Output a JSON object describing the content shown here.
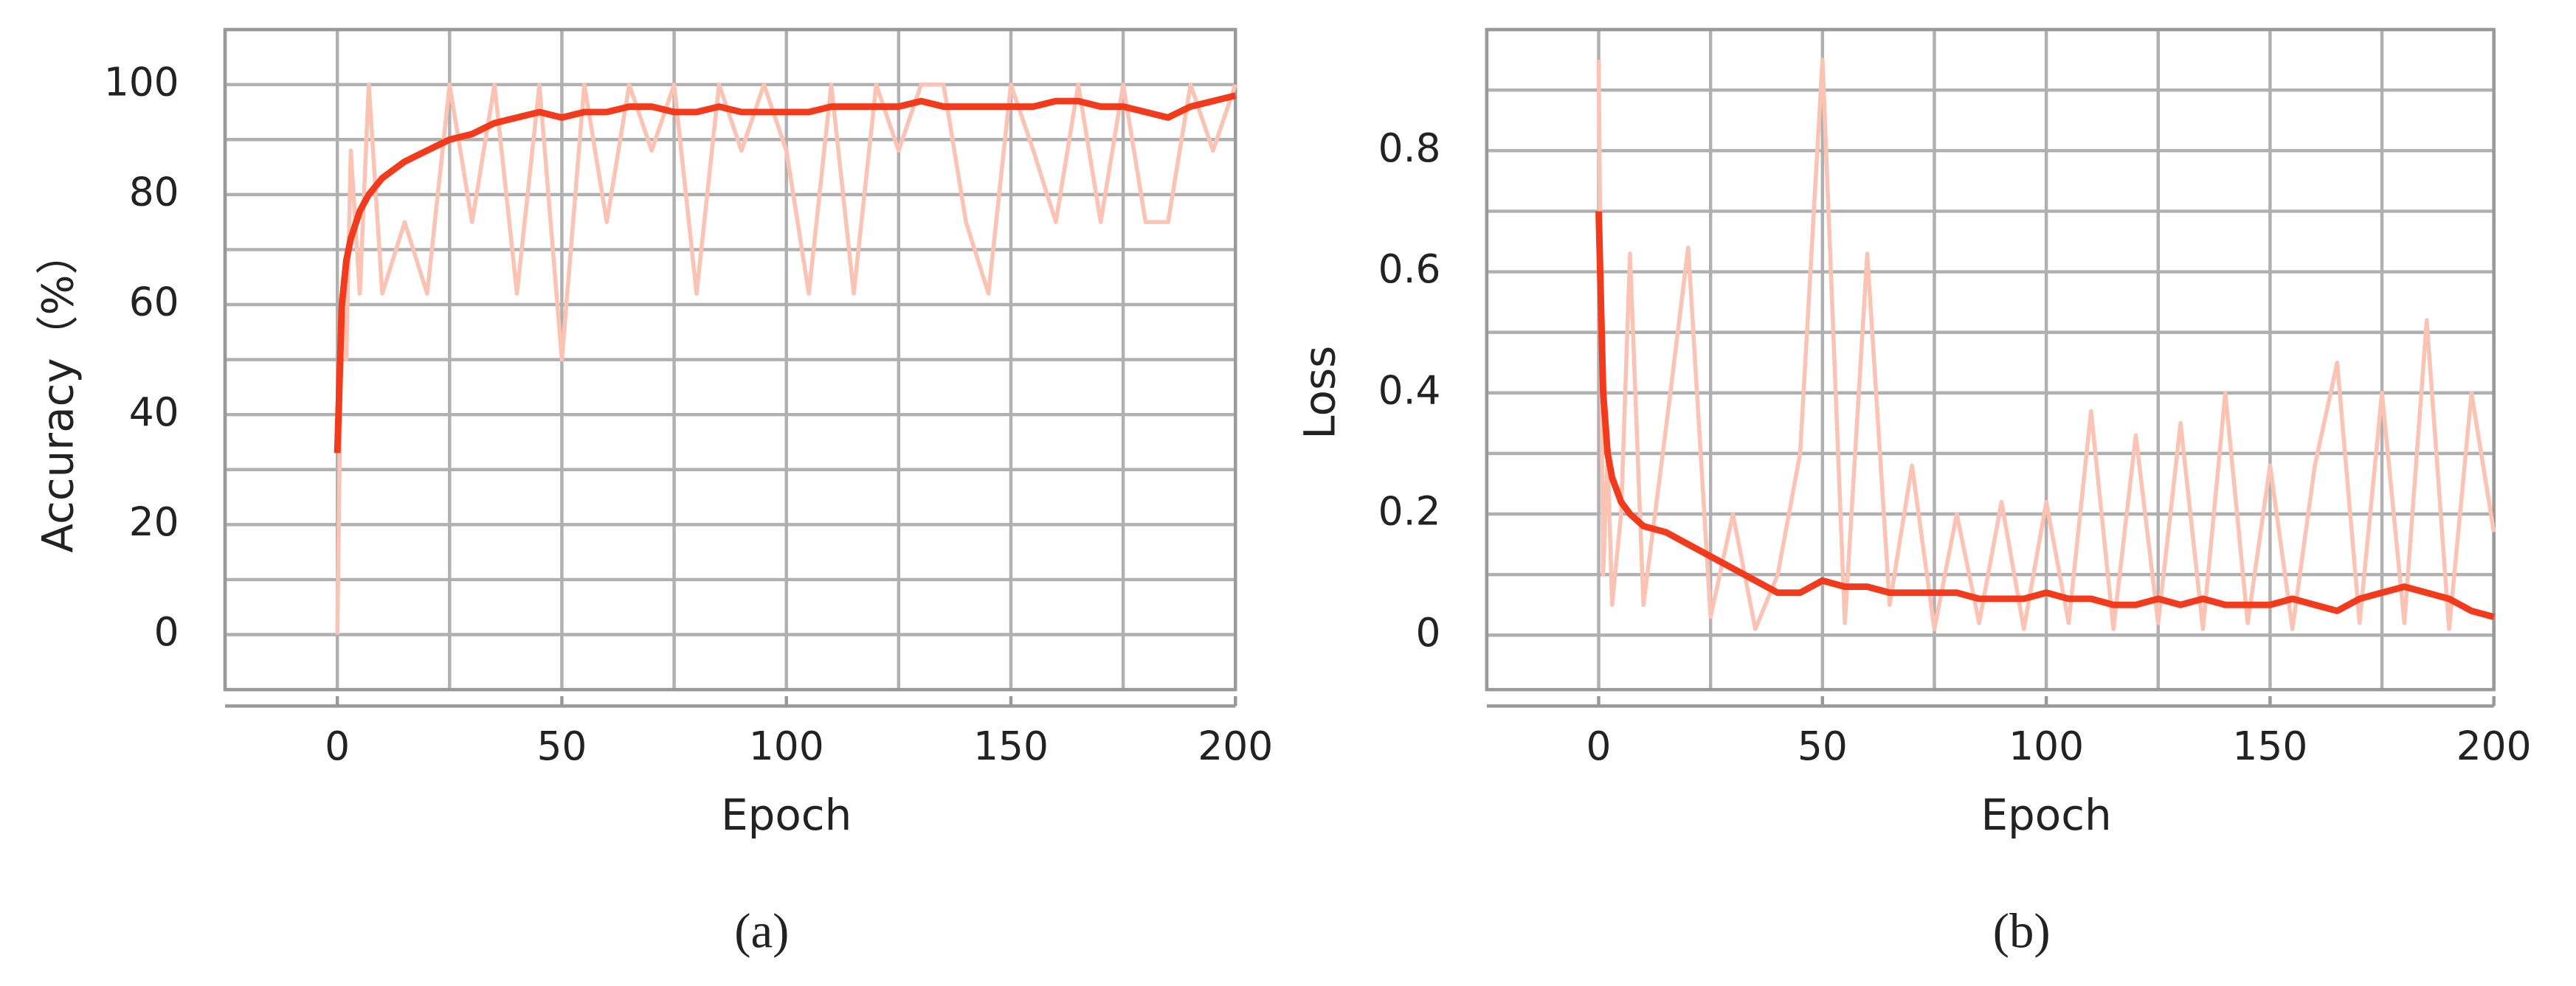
{
  "chart_data": [
    {
      "type": "line",
      "caption": "(a)",
      "x_label": "Epoch",
      "y_label": "Accuracy（%）",
      "x": [
        0,
        1,
        2,
        3,
        5,
        7,
        10,
        15,
        20,
        25,
        30,
        35,
        40,
        45,
        50,
        55,
        60,
        65,
        70,
        75,
        80,
        85,
        90,
        95,
        100,
        105,
        110,
        115,
        120,
        125,
        130,
        135,
        140,
        145,
        150,
        155,
        160,
        165,
        170,
        175,
        180,
        185,
        190,
        195,
        200
      ],
      "series": [
        {
          "color": "#fbc3b4",
          "values": [
            0,
            62,
            50,
            88,
            62,
            100,
            62,
            75,
            62,
            100,
            75,
            100,
            62,
            100,
            50,
            100,
            75,
            100,
            88,
            100,
            62,
            100,
            88,
            100,
            88,
            62,
            100,
            62,
            100,
            88,
            100,
            100,
            75,
            62,
            100,
            88,
            75,
            100,
            75,
            100,
            75,
            75,
            100,
            88,
            100
          ]
        },
        {
          "color": "#f23b1c",
          "values": [
            33,
            60,
            68,
            72,
            77,
            80,
            83,
            86,
            88,
            90,
            91,
            93,
            94,
            95,
            94,
            95,
            95,
            96,
            96,
            95,
            95,
            96,
            95,
            95,
            95,
            95,
            96,
            96,
            96,
            96,
            97,
            96,
            96,
            96,
            96,
            96,
            97,
            97,
            96,
            96,
            95,
            94,
            96,
            97,
            98
          ]
        }
      ],
      "xlim": [
        -25,
        200
      ],
      "xticks": [
        0,
        50,
        100,
        150,
        200
      ],
      "x_minor_step": 25,
      "ylim": [
        -10,
        110
      ],
      "yticks": [
        0,
        20,
        40,
        60,
        80,
        100
      ],
      "y_minor_step": 10,
      "grid": true
    },
    {
      "type": "line",
      "caption": "(b)",
      "x_label": "Epoch",
      "y_label": "Loss",
      "x": [
        0,
        1,
        2,
        3,
        5,
        7,
        10,
        15,
        20,
        25,
        30,
        35,
        40,
        45,
        50,
        55,
        60,
        65,
        70,
        75,
        80,
        85,
        90,
        95,
        100,
        105,
        110,
        115,
        120,
        125,
        130,
        135,
        140,
        145,
        150,
        155,
        160,
        165,
        170,
        175,
        180,
        185,
        190,
        195,
        200
      ],
      "series": [
        {
          "color": "#fbc3b4",
          "values": [
            0.95,
            0.1,
            0.3,
            0.05,
            0.2,
            0.63,
            0.05,
            0.34,
            0.64,
            0.03,
            0.2,
            0.01,
            0.1,
            0.3,
            0.95,
            0.02,
            0.63,
            0.05,
            0.28,
            0.01,
            0.2,
            0.02,
            0.22,
            0.01,
            0.22,
            0.02,
            0.37,
            0.01,
            0.33,
            0.02,
            0.35,
            0.01,
            0.4,
            0.02,
            0.28,
            0.01,
            0.28,
            0.45,
            0.02,
            0.4,
            0.02,
            0.52,
            0.01,
            0.4,
            0.17
          ]
        },
        {
          "color": "#f23b1c",
          "values": [
            0.7,
            0.4,
            0.3,
            0.26,
            0.22,
            0.2,
            0.18,
            0.17,
            0.15,
            0.13,
            0.11,
            0.09,
            0.07,
            0.07,
            0.09,
            0.08,
            0.08,
            0.07,
            0.07,
            0.07,
            0.07,
            0.06,
            0.06,
            0.06,
            0.07,
            0.06,
            0.06,
            0.05,
            0.05,
            0.06,
            0.05,
            0.06,
            0.05,
            0.05,
            0.05,
            0.06,
            0.05,
            0.04,
            0.06,
            0.07,
            0.08,
            0.07,
            0.06,
            0.04,
            0.03
          ]
        }
      ],
      "xlim": [
        -25,
        200
      ],
      "xticks": [
        0,
        50,
        100,
        150,
        200
      ],
      "x_minor_step": 25,
      "ylim": [
        -0.09,
        1.0
      ],
      "yticks": [
        0,
        0.2,
        0.4,
        0.6,
        0.8
      ],
      "y_minor_step": 0.1,
      "grid": true
    }
  ]
}
